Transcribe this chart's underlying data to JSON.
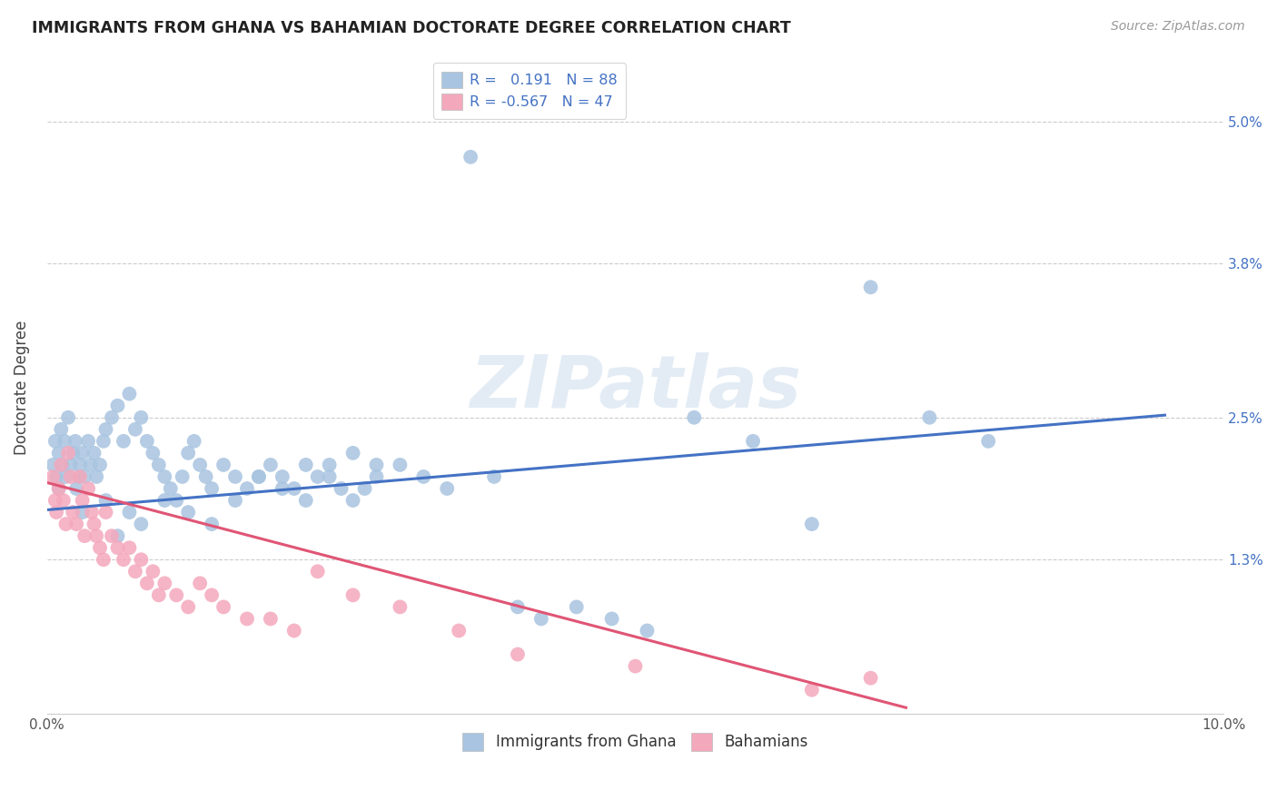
{
  "title": "IMMIGRANTS FROM GHANA VS BAHAMIAN DOCTORATE DEGREE CORRELATION CHART",
  "source": "Source: ZipAtlas.com",
  "ylabel": "Doctorate Degree",
  "ytick_labels": [
    "1.3%",
    "2.5%",
    "3.8%",
    "5.0%"
  ],
  "ytick_values": [
    1.3,
    2.5,
    3.8,
    5.0
  ],
  "xlim": [
    0.0,
    10.0
  ],
  "ylim": [
    0.0,
    5.5
  ],
  "blue_color": "#a8c4e0",
  "pink_color": "#f4a8bc",
  "blue_line_color": "#4472c4",
  "pink_line_color": "#e05575",
  "watermark": "ZIPatlas",
  "ghana_x": [
    0.05,
    0.07,
    0.08,
    0.1,
    0.1,
    0.12,
    0.13,
    0.15,
    0.16,
    0.18,
    0.2,
    0.22,
    0.24,
    0.25,
    0.27,
    0.28,
    0.3,
    0.32,
    0.35,
    0.37,
    0.4,
    0.42,
    0.45,
    0.48,
    0.5,
    0.55,
    0.6,
    0.65,
    0.7,
    0.75,
    0.8,
    0.85,
    0.9,
    0.95,
    1.0,
    1.05,
    1.1,
    1.15,
    1.2,
    1.25,
    1.3,
    1.35,
    1.4,
    1.5,
    1.6,
    1.7,
    1.8,
    1.9,
    2.0,
    2.1,
    2.2,
    2.3,
    2.4,
    2.5,
    2.6,
    2.7,
    2.8,
    3.0,
    3.2,
    3.4,
    3.6,
    3.8,
    4.0,
    4.2,
    4.5,
    4.8,
    5.1,
    5.5,
    6.0,
    6.5,
    7.0,
    7.5,
    8.0,
    0.3,
    0.5,
    0.6,
    0.7,
    0.8,
    1.0,
    1.2,
    1.4,
    1.6,
    1.8,
    2.0,
    2.2,
    2.4,
    2.6,
    2.8
  ],
  "ghana_y": [
    2.1,
    2.3,
    2.0,
    2.2,
    1.9,
    2.4,
    2.1,
    2.3,
    2.0,
    2.5,
    2.1,
    2.2,
    2.3,
    1.9,
    2.0,
    2.1,
    2.2,
    2.0,
    2.3,
    2.1,
    2.2,
    2.0,
    2.1,
    2.3,
    2.4,
    2.5,
    2.6,
    2.3,
    2.7,
    2.4,
    2.5,
    2.3,
    2.2,
    2.1,
    2.0,
    1.9,
    1.8,
    2.0,
    2.2,
    2.3,
    2.1,
    2.0,
    1.9,
    2.1,
    2.0,
    1.9,
    2.0,
    2.1,
    2.0,
    1.9,
    1.8,
    2.0,
    2.1,
    1.9,
    1.8,
    1.9,
    2.0,
    2.1,
    2.0,
    1.9,
    4.7,
    2.0,
    0.9,
    0.8,
    0.9,
    0.8,
    0.7,
    2.5,
    2.3,
    1.6,
    3.6,
    2.5,
    2.3,
    1.7,
    1.8,
    1.5,
    1.7,
    1.6,
    1.8,
    1.7,
    1.6,
    1.8,
    2.0,
    1.9,
    2.1,
    2.0,
    2.2,
    2.1
  ],
  "bahamas_x": [
    0.05,
    0.07,
    0.08,
    0.1,
    0.12,
    0.14,
    0.16,
    0.18,
    0.2,
    0.22,
    0.25,
    0.28,
    0.3,
    0.32,
    0.35,
    0.38,
    0.4,
    0.42,
    0.45,
    0.48,
    0.5,
    0.55,
    0.6,
    0.65,
    0.7,
    0.75,
    0.8,
    0.85,
    0.9,
    0.95,
    1.0,
    1.1,
    1.2,
    1.3,
    1.4,
    1.5,
    1.7,
    1.9,
    2.1,
    2.3,
    2.6,
    3.0,
    3.5,
    4.0,
    5.0,
    6.5,
    7.0
  ],
  "bahamas_y": [
    2.0,
    1.8,
    1.7,
    1.9,
    2.1,
    1.8,
    1.6,
    2.2,
    2.0,
    1.7,
    1.6,
    2.0,
    1.8,
    1.5,
    1.9,
    1.7,
    1.6,
    1.5,
    1.4,
    1.3,
    1.7,
    1.5,
    1.4,
    1.3,
    1.4,
    1.2,
    1.3,
    1.1,
    1.2,
    1.0,
    1.1,
    1.0,
    0.9,
    1.1,
    1.0,
    0.9,
    0.8,
    0.8,
    0.7,
    1.2,
    1.0,
    0.9,
    0.7,
    0.5,
    0.4,
    0.2,
    0.3
  ],
  "blue_line_x": [
    0.0,
    9.5
  ],
  "blue_line_y": [
    1.72,
    2.52
  ],
  "pink_line_x": [
    0.0,
    7.3
  ],
  "pink_line_y": [
    1.95,
    0.05
  ],
  "xtick_positions": [
    0.0,
    2.5,
    5.0,
    7.5,
    10.0
  ],
  "xtick_labels": [
    "0.0%",
    "",
    "",
    "",
    "10.0%"
  ]
}
